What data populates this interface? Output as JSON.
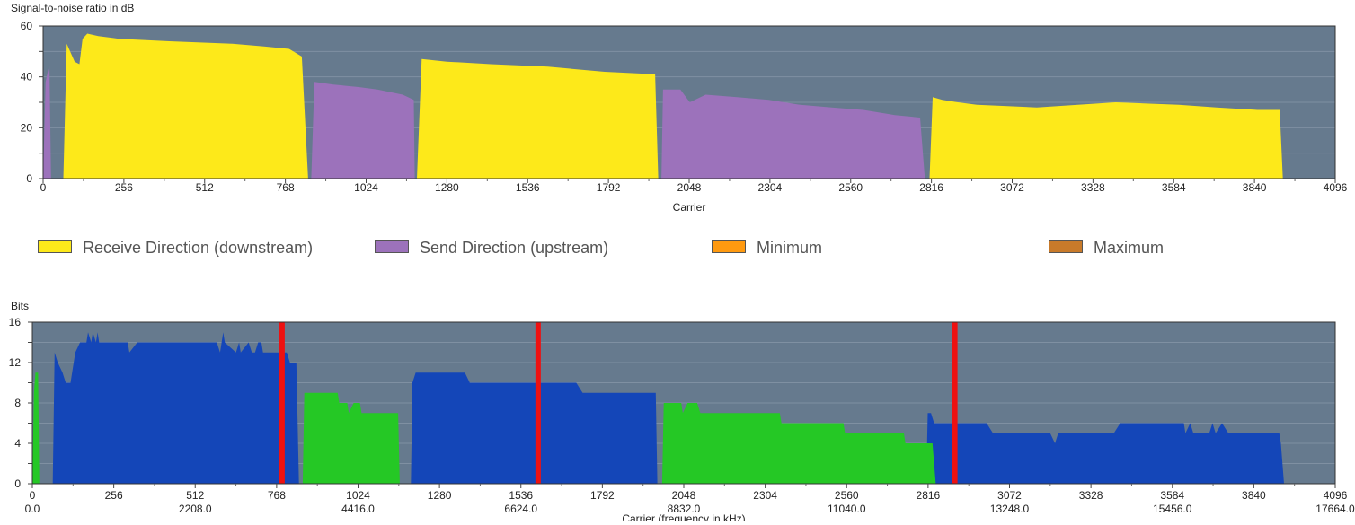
{
  "charts": {
    "snr": {
      "title": "Signal-to-noise ratio in dB",
      "xlabel": "Carrier"
    },
    "bits": {
      "title": "Bits",
      "xlabel": "Carrier (frequency in kHz)"
    }
  },
  "legend": [
    {
      "label": "Receive Direction (downstream)",
      "color": "#fde91a"
    },
    {
      "label": "Send Direction (upstream)",
      "color": "#9c72bb"
    },
    {
      "label": "Minimum",
      "color": "#ff9a10"
    },
    {
      "label": "Maximum",
      "color": "#c87a2a"
    }
  ],
  "colors": {
    "plot_bg": "#667a8e",
    "grid": "#7f90a2",
    "snr_down": "#fde91a",
    "snr_up": "#9c72bb",
    "bits_down": "#1446b8",
    "bits_up": "#25c825",
    "marker": "#ee1111"
  },
  "chart_data": [
    {
      "type": "area",
      "title": "Signal-to-noise ratio in dB",
      "xlabel": "Carrier",
      "ylabel": "",
      "xlim": [
        0,
        4096
      ],
      "ylim": [
        0,
        60
      ],
      "xticks": [
        0,
        256,
        512,
        768,
        1024,
        1280,
        1536,
        1792,
        2048,
        2304,
        2560,
        2816,
        3072,
        3328,
        3584,
        3840,
        4096
      ],
      "yticks": [
        0,
        20,
        40,
        60
      ],
      "grid": true,
      "series": [
        {
          "name": "Receive Direction (downstream)",
          "segments": [
            [
              [
                64,
                0
              ],
              [
                75,
                53
              ],
              [
                100,
                46
              ],
              [
                115,
                45
              ],
              [
                125,
                55
              ],
              [
                140,
                57
              ],
              [
                175,
                56
              ],
              [
                240,
                55
              ],
              [
                400,
                54
              ],
              [
                600,
                53
              ],
              [
                700,
                52
              ],
              [
                780,
                51
              ],
              [
                820,
                48
              ],
              [
                840,
                0
              ]
            ],
            [
              [
                1185,
                0
              ],
              [
                1200,
                47
              ],
              [
                1280,
                46
              ],
              [
                1420,
                45
              ],
              [
                1600,
                44
              ],
              [
                1780,
                42
              ],
              [
                1940,
                41
              ],
              [
                1950,
                0
              ]
            ],
            [
              [
                2810,
                0
              ],
              [
                2820,
                32
              ],
              [
                2850,
                31
              ],
              [
                2900,
                30
              ],
              [
                2960,
                29
              ],
              [
                3150,
                28
              ],
              [
                3400,
                30
              ],
              [
                3600,
                29
              ],
              [
                3720,
                28
              ],
              [
                3850,
                27
              ],
              [
                3920,
                27
              ],
              [
                3930,
                0
              ]
            ]
          ]
        },
        {
          "name": "Send Direction (upstream)",
          "segments": [
            [
              [
                0,
                0
              ],
              [
                8,
                38
              ],
              [
                20,
                45
              ],
              [
                25,
                0
              ]
            ],
            [
              [
                850,
                0
              ],
              [
                860,
                38
              ],
              [
                920,
                37
              ],
              [
                1000,
                36
              ],
              [
                1060,
                35
              ],
              [
                1140,
                33
              ],
              [
                1175,
                31
              ],
              [
                1178,
                0
              ]
            ],
            [
              [
                1960,
                0
              ],
              [
                1965,
                35
              ],
              [
                2020,
                35
              ],
              [
                2050,
                30
              ],
              [
                2100,
                33
              ],
              [
                2200,
                32
              ],
              [
                2300,
                31
              ],
              [
                2400,
                29
              ],
              [
                2500,
                28
              ],
              [
                2600,
                27
              ],
              [
                2700,
                25
              ],
              [
                2780,
                24
              ],
              [
                2795,
                0
              ]
            ]
          ]
        }
      ]
    },
    {
      "type": "area",
      "title": "Bits",
      "xlabel": "Carrier (frequency in kHz)",
      "ylabel": "",
      "xlim": [
        0,
        4096
      ],
      "ylim": [
        0,
        16
      ],
      "xticks": [
        0,
        256,
        512,
        768,
        1024,
        1280,
        1536,
        1792,
        2048,
        2304,
        2560,
        2816,
        3072,
        3328,
        3584,
        3840,
        4096
      ],
      "xticks_khz": [
        "0.0",
        "2208.0",
        "4416.0",
        "6624.0",
        "8832.0",
        "11040.0",
        "13248.0",
        "15456.0",
        "17664.0"
      ],
      "yticks": [
        0,
        4,
        8,
        12,
        16
      ],
      "grid": true,
      "markers": [
        785,
        1590,
        2900
      ],
      "series": [
        {
          "name": "Receive Direction (downstream)",
          "segments": [
            [
              [
                64,
                0
              ],
              [
                70,
                13
              ],
              [
                80,
                12
              ],
              [
                95,
                11
              ],
              [
                105,
                10
              ],
              [
                120,
                10
              ],
              [
                135,
                13
              ],
              [
                150,
                14
              ],
              [
                170,
                14
              ],
              [
                175,
                15
              ],
              [
                185,
                14
              ],
              [
                190,
                15
              ],
              [
                200,
                14
              ],
              [
                205,
                15
              ],
              [
                210,
                14
              ],
              [
                300,
                14
              ],
              [
                305,
                13
              ],
              [
                330,
                14
              ],
              [
                580,
                14
              ],
              [
                590,
                13
              ],
              [
                600,
                15
              ],
              [
                605,
                14
              ],
              [
                640,
                13
              ],
              [
                650,
                14
              ],
              [
                655,
                13
              ],
              [
                680,
                14
              ],
              [
                690,
                13
              ],
              [
                700,
                13
              ],
              [
                710,
                14
              ],
              [
                720,
                14
              ],
              [
                725,
                13
              ],
              [
                800,
                13
              ],
              [
                810,
                12
              ],
              [
                830,
                12
              ],
              [
                838,
                0
              ]
            ],
            [
              [
                1190,
                0
              ],
              [
                1195,
                10
              ],
              [
                1205,
                11
              ],
              [
                1360,
                11
              ],
              [
                1375,
                10
              ],
              [
                1710,
                10
              ],
              [
                1730,
                9
              ],
              [
                1960,
                9
              ],
              [
                1965,
                0
              ]
            ],
            [
              [
                2810,
                0
              ],
              [
                2815,
                7
              ],
              [
                2825,
                7
              ],
              [
                2835,
                6
              ],
              [
                3000,
                6
              ],
              [
                3020,
                5
              ],
              [
                3200,
                5
              ],
              [
                3215,
                4
              ],
              [
                3225,
                5
              ],
              [
                3400,
                5
              ],
              [
                3420,
                6
              ],
              [
                3620,
                6
              ],
              [
                3625,
                5
              ],
              [
                3640,
                6
              ],
              [
                3650,
                5
              ],
              [
                3700,
                5
              ],
              [
                3710,
                6
              ],
              [
                3720,
                5
              ],
              [
                3740,
                6
              ],
              [
                3760,
                5
              ],
              [
                3920,
                5
              ],
              [
                3925,
                4
              ],
              [
                3935,
                0
              ]
            ]
          ]
        },
        {
          "name": "Send Direction (upstream)",
          "segments": [
            [
              [
                0,
                0
              ],
              [
                5,
                9
              ],
              [
                10,
                11
              ],
              [
                18,
                11
              ],
              [
                22,
                0
              ]
            ],
            [
              [
                850,
                0
              ],
              [
                855,
                9
              ],
              [
                960,
                9
              ],
              [
                965,
                8
              ],
              [
                990,
                8
              ],
              [
                995,
                7
              ],
              [
                1010,
                8
              ],
              [
                1030,
                8
              ],
              [
                1035,
                7
              ],
              [
                1150,
                7
              ],
              [
                1155,
                0
              ]
            ],
            [
              [
                1980,
                0
              ],
              [
                1985,
                8
              ],
              [
                2040,
                8
              ],
              [
                2045,
                7
              ],
              [
                2060,
                8
              ],
              [
                2090,
                8
              ],
              [
                2100,
                7
              ],
              [
                2350,
                7
              ],
              [
                2355,
                6
              ],
              [
                2550,
                6
              ],
              [
                2555,
                5
              ],
              [
                2740,
                5
              ],
              [
                2745,
                4
              ],
              [
                2830,
                4
              ],
              [
                2840,
                0
              ]
            ]
          ]
        }
      ]
    }
  ]
}
